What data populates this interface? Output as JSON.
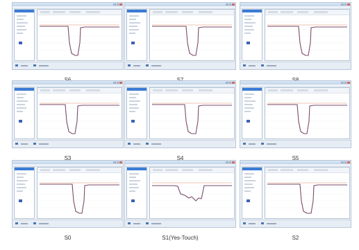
{
  "panels": [
    {
      "label": "S6",
      "trace": "drop"
    },
    {
      "label": "S7",
      "trace": "drop"
    },
    {
      "label": "S8",
      "trace": "drop"
    },
    {
      "label": "S3",
      "trace": "drop"
    },
    {
      "label": "S4",
      "trace": "drop"
    },
    {
      "label": "S5",
      "trace": "drop"
    },
    {
      "label": "S0",
      "trace": "drop"
    },
    {
      "label": "S1(Yes-Touch)",
      "trace": "wavy"
    },
    {
      "label": "S2",
      "trace": "drop"
    }
  ],
  "colors": {
    "trace": "#7a4a6a",
    "reference_line": "#e6b09a",
    "window_border": "#b8c6d8",
    "list_header": "#3a7bd5"
  },
  "icons": {
    "window_close": "close-icon",
    "list_item": "folder-icon",
    "status_icon": "monitor-icon"
  }
}
